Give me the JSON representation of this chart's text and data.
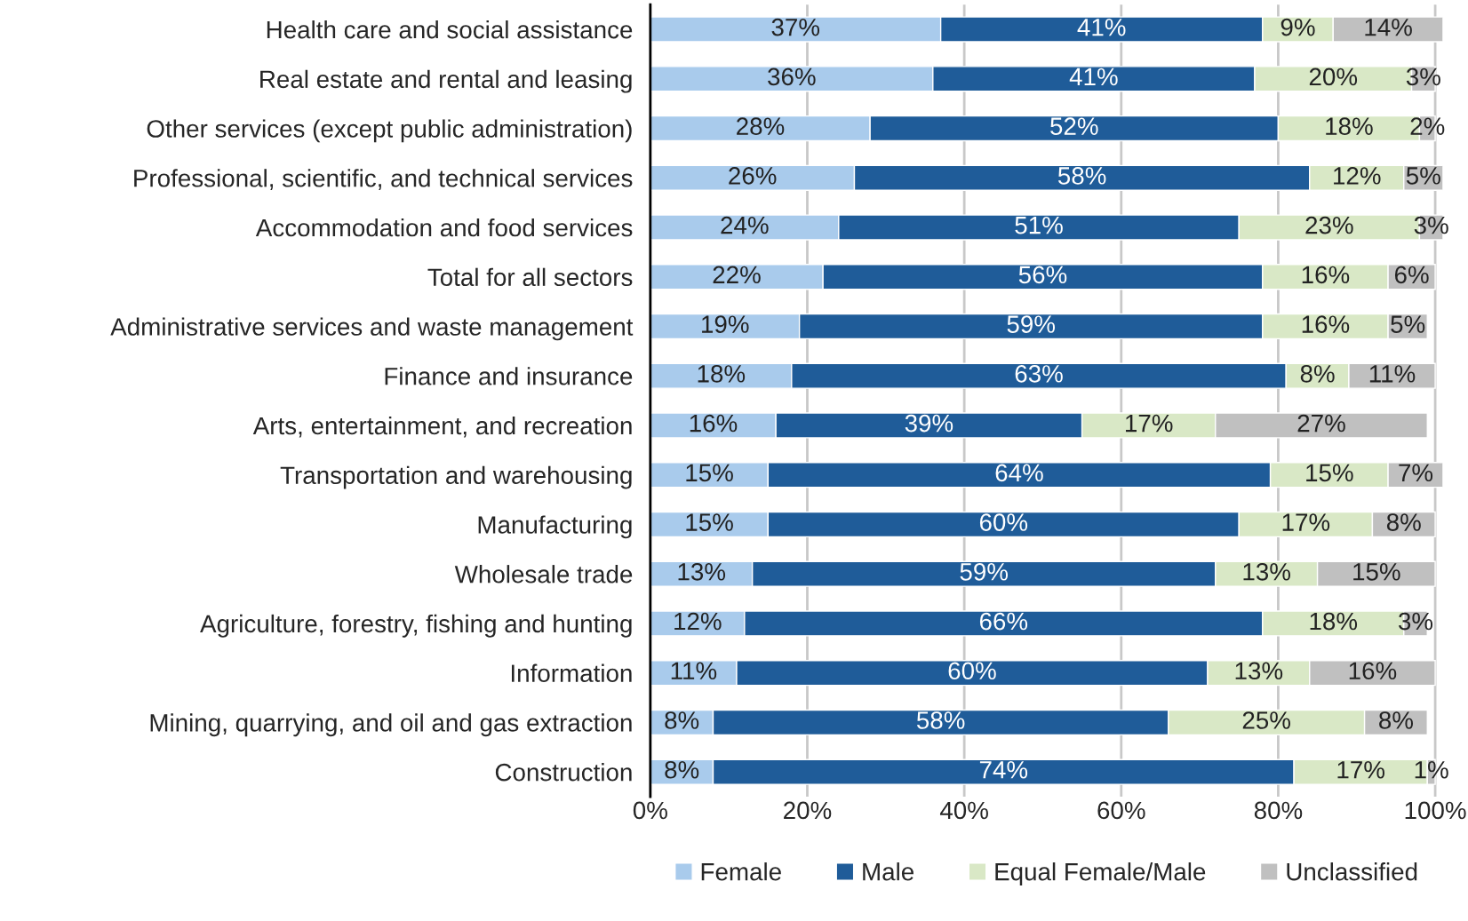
{
  "chart_data": {
    "type": "bar",
    "orientation": "horizontal",
    "stacked": true,
    "categories": [
      "Health care and social assistance",
      "Real estate and rental and leasing",
      "Other services (except public administration)",
      "Professional, scientific, and technical services",
      "Accommodation and food services",
      "Total for all sectors",
      "Administrative services and waste management",
      "Finance and insurance",
      "Arts, entertainment, and recreation",
      "Transportation and warehousing",
      "Manufacturing",
      "Wholesale trade",
      "Agriculture, forestry, fishing and hunting",
      "Information",
      "Mining, quarrying, and oil and gas extraction",
      "Construction"
    ],
    "series": [
      {
        "name": "Female",
        "color": "#a9cbec",
        "values": [
          37,
          36,
          28,
          26,
          24,
          22,
          19,
          18,
          16,
          15,
          15,
          13,
          12,
          11,
          8,
          8
        ],
        "value_labels": [
          "37%",
          "36%",
          "28%",
          "26%",
          "24%",
          "22%",
          "19%",
          "18%",
          "16%",
          "15%",
          "15%",
          "13%",
          "12%",
          "11%",
          "8%",
          "8%"
        ]
      },
      {
        "name": "Male",
        "color": "#1f5c99",
        "values": [
          41,
          41,
          52,
          58,
          51,
          56,
          59,
          63,
          39,
          64,
          60,
          59,
          66,
          60,
          58,
          74
        ],
        "value_labels": [
          "41%",
          "41%",
          "52%",
          "58%",
          "51%",
          "56%",
          "59%",
          "63%",
          "39%",
          "64%",
          "60%",
          "59%",
          "66%",
          "60%",
          "58%",
          "74%"
        ]
      },
      {
        "name": "Equal Female/Male",
        "color": "#d9e8c6",
        "values": [
          9,
          20,
          18,
          12,
          23,
          16,
          16,
          8,
          17,
          15,
          17,
          13,
          18,
          13,
          25,
          17
        ],
        "value_labels": [
          "9%",
          "20%",
          "18%",
          "12%",
          "23%",
          "16%",
          "16%",
          "8%",
          "17%",
          "15%",
          "17%",
          "13%",
          "18%",
          "13%",
          "25%",
          "17%"
        ]
      },
      {
        "name": "Unclassified",
        "color": "#c0c0c0",
        "values": [
          14,
          3,
          2,
          5,
          3,
          6,
          5,
          11,
          27,
          7,
          8,
          15,
          3,
          16,
          8,
          1
        ],
        "value_labels": [
          "14%",
          "3%",
          "2%",
          "5%",
          "3%",
          "6%",
          "5%",
          "11%",
          "27%",
          "7%",
          "8%",
          "15%",
          "3%",
          "16%",
          "8%",
          "1%"
        ]
      }
    ],
    "xlim": [
      0,
      101
    ],
    "xticks": [
      {
        "value": 0,
        "label": "0%"
      },
      {
        "value": 20,
        "label": "20%"
      },
      {
        "value": 40,
        "label": "40%"
      },
      {
        "value": 60,
        "label": "60%"
      },
      {
        "value": 80,
        "label": "80%"
      },
      {
        "value": 100,
        "label": "100%"
      }
    ],
    "grid": "x",
    "legend": "bottom"
  }
}
